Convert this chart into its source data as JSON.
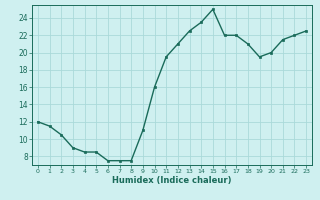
{
  "x": [
    0,
    1,
    2,
    3,
    4,
    5,
    6,
    7,
    8,
    9,
    10,
    11,
    12,
    13,
    14,
    15,
    16,
    17,
    18,
    19,
    20,
    21,
    22,
    23
  ],
  "y": [
    12,
    11.5,
    10.5,
    9,
    8.5,
    8.5,
    7.5,
    7.5,
    7.5,
    11,
    16,
    19.5,
    21,
    22.5,
    23.5,
    25,
    22,
    22,
    21,
    19.5,
    20,
    21.5,
    22,
    22.5
  ],
  "title": "",
  "xlabel": "Humidex (Indice chaleur)",
  "ylabel": "",
  "xlim": [
    -0.5,
    23.5
  ],
  "ylim": [
    7,
    25.5
  ],
  "yticks": [
    8,
    10,
    12,
    14,
    16,
    18,
    20,
    22,
    24
  ],
  "xticks": [
    0,
    1,
    2,
    3,
    4,
    5,
    6,
    7,
    8,
    9,
    10,
    11,
    12,
    13,
    14,
    15,
    16,
    17,
    18,
    19,
    20,
    21,
    22,
    23
  ],
  "bg_color": "#cff0f0",
  "line_color": "#1a6b5a",
  "marker_color": "#1a6b5a",
  "grid_color": "#aadada",
  "axis_color": "#1a6b5a",
  "label_color": "#1a6b5a"
}
